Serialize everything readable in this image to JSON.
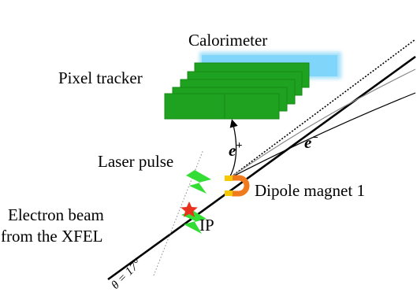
{
  "labels": {
    "calorimeter": "Calorimeter",
    "pixel_tracker": "Pixel tracker",
    "laser_pulse": "Laser pulse",
    "dipole_magnet": "Dipole magnet 1",
    "electron_beam_line1": "Electron beam",
    "electron_beam_line2": "from the XFEL",
    "ip": "IP",
    "positron_base": "e",
    "positron_sup": "+",
    "electron_base": "e",
    "electron_sup": "−",
    "angle": "θ = 17°"
  },
  "colors": {
    "tracker_green": "#1fa21f",
    "tracker_edge": "#0f7a0f",
    "calorimeter_blue": "#5cc8f5",
    "laser_green": "#33dd33",
    "ip_star": "#e8321e",
    "magnet_orange": "#f07a1e",
    "magnet_yellow": "#f5c800"
  },
  "icons": {
    "interaction_point": "star-icon",
    "laser": "lightning-bolt-icon",
    "magnet": "horseshoe-magnet-icon"
  }
}
